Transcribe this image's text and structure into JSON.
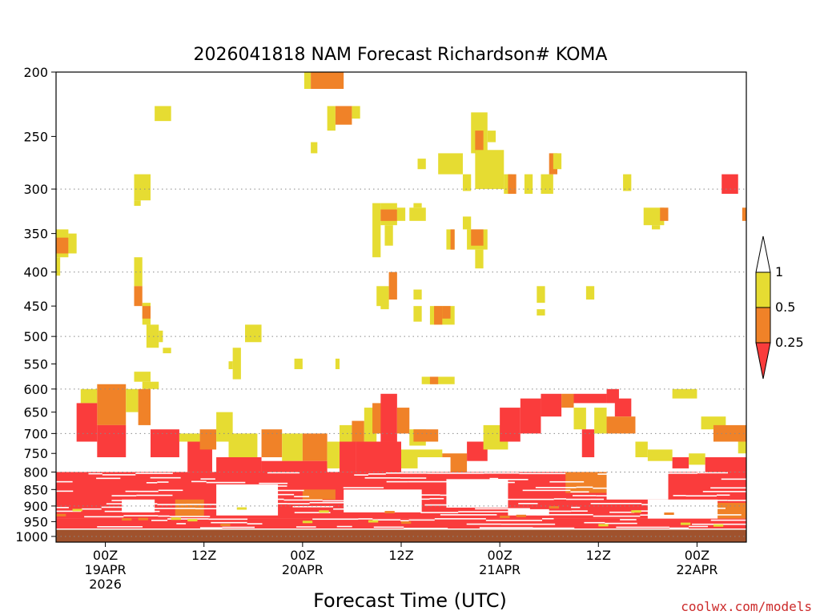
{
  "chart_data": {
    "type": "heatmap",
    "title": "2026041818 NAM Forecast Richardson# KOMA",
    "xlabel": "Forecast Time (UTC)",
    "credit": "coolwx.com/models",
    "y_ticks": [
      "200",
      "250",
      "300",
      "350",
      "400",
      "450",
      "500",
      "550",
      "600",
      "650",
      "700",
      "750",
      "800",
      "850",
      "900",
      "950",
      "1000"
    ],
    "y_values": [
      200,
      250,
      300,
      350,
      400,
      450,
      500,
      550,
      600,
      650,
      700,
      750,
      800,
      850,
      900,
      950,
      1000
    ],
    "gridline_levels": [
      300,
      400,
      500,
      600,
      700,
      800,
      900,
      1000
    ],
    "x_ticks": [
      {
        "hour": 6,
        "lines": [
          "00Z",
          "19APR",
          "2026"
        ]
      },
      {
        "hour": 18,
        "lines": [
          "12Z"
        ]
      },
      {
        "hour": 30,
        "lines": [
          "00Z",
          "20APR"
        ]
      },
      {
        "hour": 42,
        "lines": [
          "12Z"
        ]
      },
      {
        "hour": 54,
        "lines": [
          "00Z",
          "21APR"
        ]
      },
      {
        "hour": 66,
        "lines": [
          "12Z"
        ]
      },
      {
        "hour": 78,
        "lines": [
          "00Z",
          "22APR"
        ]
      }
    ],
    "x_range": [
      0,
      84
    ],
    "surface_below_hpa": 975,
    "legend": {
      "labels": [
        "1",
        "0.5",
        "0.25"
      ],
      "bins": [
        {
          "range": "0.5-1",
          "color": "#e6dc32"
        },
        {
          "range": "0.25-0.5",
          "color": "#f08228"
        },
        {
          "range": "<0.25",
          "color": "#fa3c3c"
        }
      ]
    },
    "colors": {
      "y": "#e6dc32",
      "o": "#f08228",
      "r": "#fa3c3c",
      "ground": "#a0522d"
    },
    "patches": [
      {
        "t0": 30.2,
        "t1": 31.0,
        "p0": 200,
        "p1": 212,
        "c": "y"
      },
      {
        "t0": 31.0,
        "t1": 35.0,
        "p0": 200,
        "p1": 212,
        "c": "o"
      },
      {
        "t0": 12.0,
        "t1": 14.0,
        "p0": 225,
        "p1": 237,
        "c": "y"
      },
      {
        "t0": 33.0,
        "t1": 34.0,
        "p0": 225,
        "p1": 245,
        "c": "y"
      },
      {
        "t0": 34.0,
        "t1": 36.0,
        "p0": 225,
        "p1": 240,
        "c": "o"
      },
      {
        "t0": 36.0,
        "t1": 37.0,
        "p0": 225,
        "p1": 235,
        "c": "y"
      },
      {
        "t0": 31.0,
        "t1": 31.8,
        "p0": 255,
        "p1": 265,
        "c": "y"
      },
      {
        "t0": 50.5,
        "t1": 52.5,
        "p0": 230,
        "p1": 265,
        "c": "y"
      },
      {
        "t0": 51.0,
        "t1": 52.0,
        "p0": 245,
        "p1": 265,
        "c": "o"
      },
      {
        "t0": 52.5,
        "t1": 53.5,
        "p0": 245,
        "p1": 255,
        "c": "y"
      },
      {
        "t0": 44.0,
        "t1": 45.0,
        "p0": 270,
        "p1": 280,
        "c": "y"
      },
      {
        "t0": 46.5,
        "t1": 49.5,
        "p0": 265,
        "p1": 285,
        "c": "y"
      },
      {
        "t0": 51.0,
        "t1": 54.5,
        "p0": 262,
        "p1": 300,
        "c": "y"
      },
      {
        "t0": 49.5,
        "t1": 50.5,
        "p0": 285,
        "p1": 302,
        "c": "y"
      },
      {
        "t0": 54.5,
        "t1": 55.5,
        "p0": 285,
        "p1": 305,
        "c": "y"
      },
      {
        "t0": 55.0,
        "t1": 56.0,
        "p0": 285,
        "p1": 305,
        "c": "o"
      },
      {
        "t0": 57.0,
        "t1": 58.0,
        "p0": 285,
        "p1": 305,
        "c": "y"
      },
      {
        "t0": 59.0,
        "t1": 60.5,
        "p0": 285,
        "p1": 305,
        "c": "y"
      },
      {
        "t0": 60.0,
        "t1": 61.0,
        "p0": 265,
        "p1": 285,
        "c": "o"
      },
      {
        "t0": 60.5,
        "t1": 61.5,
        "p0": 265,
        "p1": 280,
        "c": "y"
      },
      {
        "t0": 9.5,
        "t1": 11.5,
        "p0": 285,
        "p1": 312,
        "c": "y"
      },
      {
        "t0": 9.5,
        "t1": 10.3,
        "p0": 312,
        "p1": 318,
        "c": "y"
      },
      {
        "t0": 69.0,
        "t1": 70.0,
        "p0": 285,
        "p1": 302,
        "c": "y"
      },
      {
        "t0": 71.5,
        "t1": 74.0,
        "p0": 320,
        "p1": 340,
        "c": "y"
      },
      {
        "t0": 73.5,
        "t1": 74.5,
        "p0": 320,
        "p1": 335,
        "c": "o"
      },
      {
        "t0": 72.5,
        "t1": 73.5,
        "p0": 340,
        "p1": 345,
        "c": "y"
      },
      {
        "t0": 81.0,
        "t1": 83.0,
        "p0": 285,
        "p1": 305,
        "c": "r"
      },
      {
        "t0": 83.5,
        "t1": 84.0,
        "p0": 320,
        "p1": 335,
        "c": "o"
      },
      {
        "t0": 38.5,
        "t1": 39.5,
        "p0": 315,
        "p1": 380,
        "c": "y"
      },
      {
        "t0": 39.5,
        "t1": 41.5,
        "p0": 315,
        "p1": 340,
        "c": "y"
      },
      {
        "t0": 39.5,
        "t1": 41.5,
        "p0": 322,
        "p1": 335,
        "c": "o"
      },
      {
        "t0": 41.5,
        "t1": 42.5,
        "p0": 320,
        "p1": 335,
        "c": "y"
      },
      {
        "t0": 40.0,
        "t1": 41.0,
        "p0": 340,
        "p1": 365,
        "c": "y"
      },
      {
        "t0": 43.0,
        "t1": 45.0,
        "p0": 320,
        "p1": 335,
        "c": "y"
      },
      {
        "t0": 43.5,
        "t1": 44.5,
        "p0": 315,
        "p1": 320,
        "c": "y"
      },
      {
        "t0": 47.5,
        "t1": 48.5,
        "p0": 345,
        "p1": 370,
        "c": "y"
      },
      {
        "t0": 48.0,
        "t1": 48.5,
        "p0": 345,
        "p1": 370,
        "c": "o"
      },
      {
        "t0": 50.0,
        "t1": 52.5,
        "p0": 345,
        "p1": 370,
        "c": "y"
      },
      {
        "t0": 50.5,
        "t1": 52.0,
        "p0": 345,
        "p1": 365,
        "c": "o"
      },
      {
        "t0": 51.0,
        "t1": 52.0,
        "p0": 370,
        "p1": 395,
        "c": "y"
      },
      {
        "t0": 49.5,
        "t1": 50.5,
        "p0": 330,
        "p1": 345,
        "c": "y"
      },
      {
        "t0": 0.0,
        "t1": 1.5,
        "p0": 345,
        "p1": 380,
        "c": "y"
      },
      {
        "t0": 0.0,
        "t1": 1.5,
        "p0": 355,
        "p1": 375,
        "c": "o"
      },
      {
        "t0": 1.5,
        "t1": 2.5,
        "p0": 350,
        "p1": 375,
        "c": "y"
      },
      {
        "t0": 0.0,
        "t1": 0.5,
        "p0": 380,
        "p1": 405,
        "c": "y"
      },
      {
        "t0": 9.5,
        "t1": 10.5,
        "p0": 380,
        "p1": 420,
        "c": "y"
      },
      {
        "t0": 9.5,
        "t1": 10.5,
        "p0": 420,
        "p1": 450,
        "c": "o"
      },
      {
        "t0": 10.5,
        "t1": 11.5,
        "p0": 445,
        "p1": 480,
        "c": "y"
      },
      {
        "t0": 10.5,
        "t1": 11.5,
        "p0": 450,
        "p1": 470,
        "c": "o"
      },
      {
        "t0": 11.0,
        "t1": 12.5,
        "p0": 480,
        "p1": 520,
        "c": "y"
      },
      {
        "t0": 12.5,
        "t1": 13.0,
        "p0": 490,
        "p1": 510,
        "c": "y"
      },
      {
        "t0": 13.0,
        "t1": 14.0,
        "p0": 520,
        "p1": 530,
        "c": "y"
      },
      {
        "t0": 23.0,
        "t1": 25.0,
        "p0": 480,
        "p1": 510,
        "c": "y"
      },
      {
        "t0": 21.5,
        "t1": 22.5,
        "p0": 520,
        "p1": 580,
        "c": "y"
      },
      {
        "t0": 21.0,
        "t1": 21.5,
        "p0": 545,
        "p1": 560,
        "c": "y"
      },
      {
        "t0": 29.0,
        "t1": 30.0,
        "p0": 540,
        "p1": 560,
        "c": "y"
      },
      {
        "t0": 34.0,
        "t1": 34.5,
        "p0": 540,
        "p1": 560,
        "c": "y"
      },
      {
        "t0": 39.0,
        "t1": 40.5,
        "p0": 420,
        "p1": 450,
        "c": "y"
      },
      {
        "t0": 40.5,
        "t1": 41.5,
        "p0": 400,
        "p1": 440,
        "c": "o"
      },
      {
        "t0": 39.5,
        "t1": 40.5,
        "p0": 440,
        "p1": 455,
        "c": "y"
      },
      {
        "t0": 43.5,
        "t1": 44.5,
        "p0": 425,
        "p1": 440,
        "c": "y"
      },
      {
        "t0": 43.5,
        "t1": 44.5,
        "p0": 450,
        "p1": 475,
        "c": "y"
      },
      {
        "t0": 45.5,
        "t1": 48.5,
        "p0": 450,
        "p1": 480,
        "c": "y"
      },
      {
        "t0": 46.0,
        "t1": 47.0,
        "p0": 450,
        "p1": 480,
        "c": "o"
      },
      {
        "t0": 47.0,
        "t1": 48.0,
        "p0": 450,
        "p1": 470,
        "c": "o"
      },
      {
        "t0": 58.5,
        "t1": 59.5,
        "p0": 420,
        "p1": 445,
        "c": "y"
      },
      {
        "t0": 58.5,
        "t1": 59.5,
        "p0": 455,
        "p1": 465,
        "c": "y"
      },
      {
        "t0": 64.5,
        "t1": 65.5,
        "p0": 420,
        "p1": 440,
        "c": "y"
      },
      {
        "t0": 44.5,
        "t1": 48.5,
        "p0": 575,
        "p1": 590,
        "c": "y"
      },
      {
        "t0": 45.5,
        "t1": 46.5,
        "p0": 575,
        "p1": 590,
        "c": "o"
      },
      {
        "t0": 9.5,
        "t1": 11.5,
        "p0": 565,
        "p1": 585,
        "c": "y"
      },
      {
        "t0": 10.5,
        "t1": 12.5,
        "p0": 585,
        "p1": 600,
        "c": "y"
      },
      {
        "t0": 75.0,
        "t1": 78.0,
        "p0": 600,
        "p1": 620,
        "c": "y"
      },
      {
        "t0": 3.0,
        "t1": 5.0,
        "p0": 600,
        "p1": 630,
        "c": "y"
      },
      {
        "t0": 5.0,
        "t1": 8.5,
        "p0": 590,
        "p1": 680,
        "c": "o"
      },
      {
        "t0": 8.5,
        "t1": 10.0,
        "p0": 600,
        "p1": 650,
        "c": "y"
      },
      {
        "t0": 10.0,
        "t1": 11.5,
        "p0": 600,
        "p1": 680,
        "c": "o"
      },
      {
        "t0": 2.5,
        "t1": 5.0,
        "p0": 630,
        "p1": 720,
        "c": "r"
      },
      {
        "t0": 5.0,
        "t1": 8.5,
        "p0": 680,
        "p1": 760,
        "c": "r"
      },
      {
        "t0": 11.5,
        "t1": 15.0,
        "p0": 690,
        "p1": 760,
        "c": "r"
      },
      {
        "t0": 15.0,
        "t1": 17.5,
        "p0": 700,
        "p1": 720,
        "c": "y"
      },
      {
        "t0": 16.0,
        "t1": 19.0,
        "p0": 720,
        "p1": 800,
        "c": "r"
      },
      {
        "t0": 17.5,
        "t1": 19.5,
        "p0": 690,
        "p1": 740,
        "c": "o"
      },
      {
        "t0": 19.5,
        "t1": 21.5,
        "p0": 650,
        "p1": 720,
        "c": "y"
      },
      {
        "t0": 21.0,
        "t1": 24.5,
        "p0": 700,
        "p1": 780,
        "c": "y"
      },
      {
        "t0": 19.5,
        "t1": 25.0,
        "p0": 760,
        "p1": 820,
        "c": "r"
      },
      {
        "t0": 25.0,
        "t1": 27.5,
        "p0": 690,
        "p1": 760,
        "c": "o"
      },
      {
        "t0": 27.5,
        "t1": 30.0,
        "p0": 700,
        "p1": 770,
        "c": "y"
      },
      {
        "t0": 30.0,
        "t1": 33.0,
        "p0": 700,
        "p1": 770,
        "c": "o"
      },
      {
        "t0": 25.0,
        "t1": 33.0,
        "p0": 770,
        "p1": 840,
        "c": "r"
      },
      {
        "t0": 33.0,
        "t1": 34.5,
        "p0": 720,
        "p1": 790,
        "c": "y"
      },
      {
        "t0": 34.5,
        "t1": 36.0,
        "p0": 680,
        "p1": 720,
        "c": "y"
      },
      {
        "t0": 34.5,
        "t1": 36.5,
        "p0": 720,
        "p1": 800,
        "c": "r"
      },
      {
        "t0": 36.0,
        "t1": 37.5,
        "p0": 670,
        "p1": 720,
        "c": "o"
      },
      {
        "t0": 37.5,
        "t1": 39.0,
        "p0": 640,
        "p1": 720,
        "c": "y"
      },
      {
        "t0": 38.5,
        "t1": 40.5,
        "p0": 630,
        "p1": 700,
        "c": "o"
      },
      {
        "t0": 39.5,
        "t1": 41.5,
        "p0": 610,
        "p1": 720,
        "c": "r"
      },
      {
        "t0": 41.5,
        "t1": 43.0,
        "p0": 640,
        "p1": 700,
        "c": "o"
      },
      {
        "t0": 43.0,
        "t1": 45.0,
        "p0": 690,
        "p1": 730,
        "c": "y"
      },
      {
        "t0": 43.5,
        "t1": 46.5,
        "p0": 690,
        "p1": 720,
        "c": "o"
      },
      {
        "t0": 36.5,
        "t1": 42.0,
        "p0": 720,
        "p1": 800,
        "c": "r"
      },
      {
        "t0": 42.0,
        "t1": 47.0,
        "p0": 740,
        "p1": 790,
        "c": "y"
      },
      {
        "t0": 47.0,
        "t1": 50.0,
        "p0": 750,
        "p1": 800,
        "c": "o"
      },
      {
        "t0": 50.0,
        "t1": 52.5,
        "p0": 720,
        "p1": 770,
        "c": "r"
      },
      {
        "t0": 52.0,
        "t1": 55.0,
        "p0": 680,
        "p1": 740,
        "c": "y"
      },
      {
        "t0": 54.0,
        "t1": 56.5,
        "p0": 640,
        "p1": 720,
        "c": "r"
      },
      {
        "t0": 56.5,
        "t1": 59.0,
        "p0": 620,
        "p1": 700,
        "c": "r"
      },
      {
        "t0": 59.0,
        "t1": 61.5,
        "p0": 610,
        "p1": 660,
        "c": "r"
      },
      {
        "t0": 61.5,
        "t1": 63.0,
        "p0": 610,
        "p1": 640,
        "c": "o"
      },
      {
        "t0": 63.0,
        "t1": 67.0,
        "p0": 610,
        "p1": 630,
        "c": "r"
      },
      {
        "t0": 63.0,
        "t1": 64.5,
        "p0": 640,
        "p1": 690,
        "c": "y"
      },
      {
        "t0": 64.0,
        "t1": 65.5,
        "p0": 690,
        "p1": 760,
        "c": "r"
      },
      {
        "t0": 65.5,
        "t1": 67.0,
        "p0": 640,
        "p1": 700,
        "c": "y"
      },
      {
        "t0": 67.0,
        "t1": 68.5,
        "p0": 600,
        "p1": 630,
        "c": "r"
      },
      {
        "t0": 68.0,
        "t1": 70.0,
        "p0": 620,
        "p1": 660,
        "c": "r"
      },
      {
        "t0": 67.0,
        "t1": 70.5,
        "p0": 660,
        "p1": 700,
        "c": "o"
      },
      {
        "t0": 70.5,
        "t1": 72.0,
        "p0": 720,
        "p1": 760,
        "c": "y"
      },
      {
        "t0": 72.0,
        "t1": 75.0,
        "p0": 740,
        "p1": 770,
        "c": "y"
      },
      {
        "t0": 75.0,
        "t1": 77.0,
        "p0": 760,
        "p1": 790,
        "c": "r"
      },
      {
        "t0": 77.0,
        "t1": 79.0,
        "p0": 750,
        "p1": 780,
        "c": "y"
      },
      {
        "t0": 79.0,
        "t1": 84.0,
        "p0": 760,
        "p1": 800,
        "c": "r"
      },
      {
        "t0": 78.5,
        "t1": 81.5,
        "p0": 660,
        "p1": 690,
        "c": "y"
      },
      {
        "t0": 80.0,
        "t1": 84.0,
        "p0": 680,
        "p1": 720,
        "c": "o"
      },
      {
        "t0": 83.0,
        "t1": 84.0,
        "p0": 720,
        "p1": 750,
        "c": "y"
      },
      {
        "t0": 0.0,
        "t1": 84.0,
        "p0": 800,
        "p1": 940,
        "c": "r"
      },
      {
        "t0": 0.0,
        "t1": 84.0,
        "p0": 940,
        "p1": 975,
        "c": "r"
      },
      {
        "t0": 14.5,
        "t1": 18.0,
        "p0": 880,
        "p1": 935,
        "c": "o"
      },
      {
        "t0": 30.0,
        "t1": 34.0,
        "p0": 850,
        "p1": 880,
        "c": "o"
      },
      {
        "t0": 62.0,
        "t1": 67.0,
        "p0": 800,
        "p1": 860,
        "c": "o"
      },
      {
        "t0": 78.0,
        "t1": 84.0,
        "p0": 890,
        "p1": 940,
        "c": "o"
      }
    ],
    "gaps": [
      {
        "t0": 19.5,
        "t1": 27.0,
        "p0": 835,
        "p1": 930
      },
      {
        "t0": 35.0,
        "t1": 44.5,
        "p0": 850,
        "p1": 920
      },
      {
        "t0": 44.0,
        "t1": 48.0,
        "p0": 760,
        "p1": 800
      },
      {
        "t0": 47.5,
        "t1": 55.0,
        "p0": 820,
        "p1": 905
      },
      {
        "t0": 58.0,
        "t1": 62.5,
        "p0": 760,
        "p1": 790
      },
      {
        "t0": 67.0,
        "t1": 74.5,
        "p0": 790,
        "p1": 880
      },
      {
        "t0": 72.0,
        "t1": 80.5,
        "p0": 880,
        "p1": 940
      },
      {
        "t0": 55.0,
        "t1": 60.0,
        "p0": 910,
        "p1": 930
      },
      {
        "t0": 8.0,
        "t1": 12.0,
        "p0": 880,
        "p1": 920
      }
    ],
    "streaks": {
      "p0": 800,
      "p1": 975,
      "dp": 12.5
    }
  }
}
